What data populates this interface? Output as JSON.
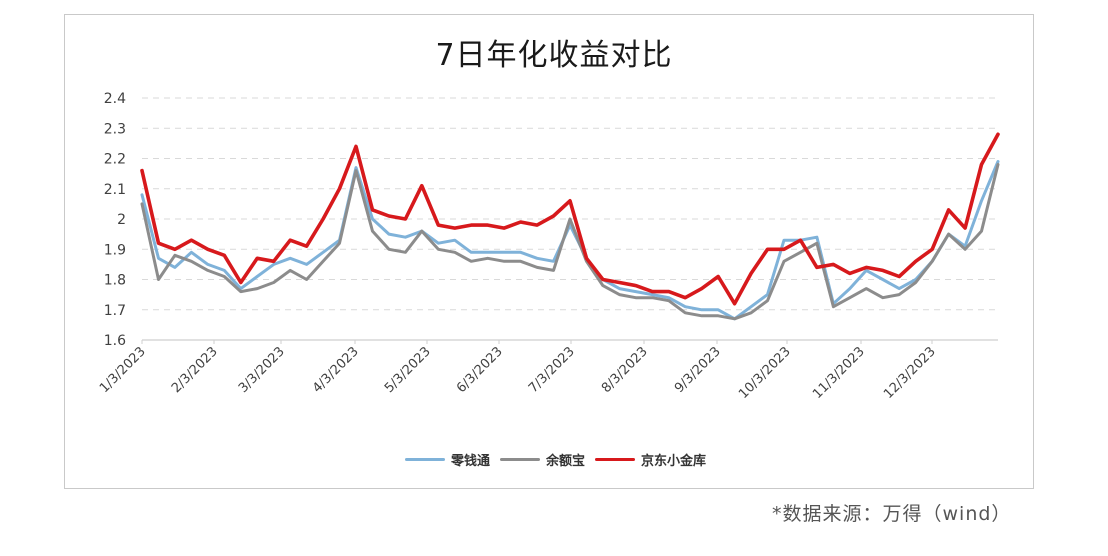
{
  "title": "7日年化收益对比",
  "source_note": "*数据来源：万得（wind）",
  "legend": [
    {
      "label": "零钱通",
      "color": "#7fb2d9"
    },
    {
      "label": "余额宝",
      "color": "#8c8c8c"
    },
    {
      "label": "京东小金库",
      "color": "#d7191c"
    }
  ],
  "chart_data": {
    "type": "line",
    "title": "7日年化收益对比",
    "xlabel": "",
    "ylabel": "",
    "ylim": [
      1.6,
      2.4
    ],
    "yticks": [
      1.6,
      1.7,
      1.8,
      1.9,
      2.0,
      2.1,
      2.2,
      2.3,
      2.4
    ],
    "ytick_labels": [
      "1.6",
      "1.7",
      "1.8",
      "1.9",
      "2",
      "2.1",
      "2.2",
      "2.3",
      "2.4"
    ],
    "xtick_labels": [
      "1/3/2023",
      "2/3/2023",
      "3/3/2023",
      "4/3/2023",
      "5/3/2023",
      "6/3/2023",
      "7/3/2023",
      "8/3/2023",
      "9/3/2023",
      "10/3/2023",
      "11/3/2023",
      "12/3/2023"
    ],
    "grid": true,
    "legend_position": "bottom",
    "x": [
      "1/3",
      "1/10",
      "1/17",
      "1/24",
      "1/31",
      "2/7",
      "2/14",
      "2/21",
      "2/28",
      "3/7",
      "3/14",
      "3/21",
      "3/28",
      "4/4",
      "4/11",
      "4/18",
      "4/25",
      "5/2",
      "5/9",
      "5/16",
      "5/23",
      "5/30",
      "6/6",
      "6/13",
      "6/20",
      "6/27",
      "7/4",
      "7/11",
      "7/18",
      "7/25",
      "8/1",
      "8/8",
      "8/15",
      "8/22",
      "8/29",
      "9/5",
      "9/12",
      "9/19",
      "9/26",
      "10/3",
      "10/10",
      "10/17",
      "10/24",
      "10/31",
      "11/7",
      "11/14",
      "11/21",
      "11/28",
      "12/5",
      "12/12",
      "12/19",
      "12/26",
      "12/31"
    ],
    "series": [
      {
        "name": "零钱通",
        "color": "#7fb2d9",
        "values": [
          2.08,
          1.87,
          1.84,
          1.89,
          1.85,
          1.83,
          1.77,
          1.81,
          1.85,
          1.87,
          1.85,
          1.89,
          1.93,
          2.17,
          2.0,
          1.95,
          1.94,
          1.96,
          1.92,
          1.93,
          1.89,
          1.89,
          1.89,
          1.89,
          1.87,
          1.86,
          1.98,
          1.87,
          1.8,
          1.77,
          1.76,
          1.75,
          1.74,
          1.71,
          1.7,
          1.7,
          1.67,
          1.71,
          1.75,
          1.93,
          1.93,
          1.94,
          1.72,
          1.77,
          1.83,
          1.8,
          1.77,
          1.8,
          1.86,
          1.95,
          1.91,
          2.06,
          2.19
        ]
      },
      {
        "name": "余额宝",
        "color": "#8c8c8c",
        "values": [
          2.05,
          1.8,
          1.88,
          1.86,
          1.83,
          1.81,
          1.76,
          1.77,
          1.79,
          1.83,
          1.8,
          1.86,
          1.92,
          2.16,
          1.96,
          1.9,
          1.89,
          1.96,
          1.9,
          1.89,
          1.86,
          1.87,
          1.86,
          1.86,
          1.84,
          1.83,
          2.0,
          1.86,
          1.78,
          1.75,
          1.74,
          1.74,
          1.73,
          1.69,
          1.68,
          1.68,
          1.67,
          1.69,
          1.73,
          1.86,
          1.89,
          1.92,
          1.71,
          1.74,
          1.77,
          1.74,
          1.75,
          1.79,
          1.86,
          1.95,
          1.9,
          1.96,
          2.18
        ]
      },
      {
        "name": "京东小金库",
        "color": "#d7191c",
        "values": [
          2.16,
          1.92,
          1.9,
          1.93,
          1.9,
          1.88,
          1.79,
          1.87,
          1.86,
          1.93,
          1.91,
          2.0,
          2.1,
          2.24,
          2.03,
          2.01,
          2.0,
          2.11,
          1.98,
          1.97,
          1.98,
          1.98,
          1.97,
          1.99,
          1.98,
          2.01,
          2.06,
          1.87,
          1.8,
          1.79,
          1.78,
          1.76,
          1.76,
          1.74,
          1.77,
          1.81,
          1.72,
          1.82,
          1.9,
          1.9,
          1.93,
          1.84,
          1.85,
          1.82,
          1.84,
          1.83,
          1.81,
          1.86,
          1.9,
          2.03,
          1.97,
          2.18,
          2.28
        ]
      }
    ]
  }
}
